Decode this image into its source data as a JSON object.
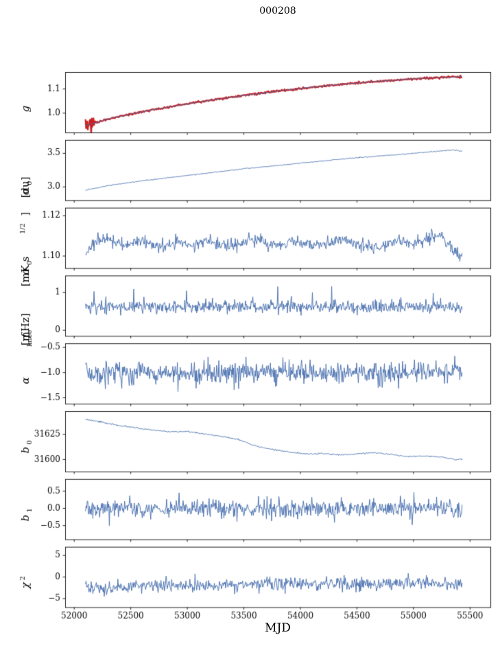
{
  "title": "000208",
  "xlabel": "MJD",
  "colors": {
    "line": "#4c72b0",
    "overlay": "#cc1f1f",
    "axis": "#000000",
    "background": "#ffffff"
  },
  "x_axis": {
    "lim": [
      51920,
      55680
    ],
    "ticks": [
      52000,
      52500,
      53000,
      53500,
      54000,
      54500,
      55000,
      55500
    ],
    "tick_labels": [
      "52000",
      "52500",
      "53000",
      "53500",
      "54000",
      "54500",
      "55000",
      "55500"
    ],
    "data_range": [
      52100,
      55430
    ]
  },
  "chart_data": [
    {
      "type": "line",
      "name": "g",
      "label_parts": [
        {
          "t": "g",
          "i": true
        }
      ],
      "ylim": [
        0.92,
        1.17
      ],
      "yticks": [
        1.0,
        1.1
      ],
      "ytick_labels": [
        "1.0",
        "1.1"
      ],
      "trend": [
        [
          52100,
          0.948
        ],
        [
          52300,
          0.976
        ],
        [
          52600,
          1.006
        ],
        [
          52900,
          1.031
        ],
        [
          53200,
          1.053
        ],
        [
          53500,
          1.073
        ],
        [
          53800,
          1.091
        ],
        [
          54100,
          1.107
        ],
        [
          54400,
          1.121
        ],
        [
          54700,
          1.132
        ],
        [
          55000,
          1.142
        ],
        [
          55200,
          1.147
        ],
        [
          55430,
          1.151
        ]
      ],
      "noise": 0.0012,
      "overlay": {
        "noise": 0.002,
        "blob_x_end": 52180,
        "blob_noise": 0.012,
        "end_x_start": 55400,
        "end_noise": 0.005,
        "lw": 2.3
      }
    },
    {
      "type": "line",
      "name": "sigma0_du",
      "label_parts": [
        {
          "t": "σ",
          "i": true
        },
        {
          "t": "0",
          "sub": true
        },
        {
          "t": " [du]"
        }
      ],
      "ylim": [
        2.8,
        3.7
      ],
      "yticks": [
        3.0,
        3.5
      ],
      "ytick_labels": [
        "3.0",
        "3.5"
      ],
      "trend": [
        [
          52100,
          2.95
        ],
        [
          52300,
          3.02
        ],
        [
          52600,
          3.09
        ],
        [
          52900,
          3.15
        ],
        [
          53200,
          3.21
        ],
        [
          53500,
          3.27
        ],
        [
          53800,
          3.32
        ],
        [
          54100,
          3.37
        ],
        [
          54400,
          3.42
        ],
        [
          54700,
          3.46
        ],
        [
          55000,
          3.5
        ],
        [
          55200,
          3.53
        ],
        [
          55350,
          3.55
        ],
        [
          55430,
          3.53
        ]
      ],
      "noise": 0.004
    },
    {
      "type": "line",
      "name": "sigma0_mK",
      "label_parts": [
        {
          "t": "σ",
          "i": true
        },
        {
          "t": "0",
          "sub": true
        },
        {
          "t": " [mK s"
        },
        {
          "t": "1/2",
          "sup": true
        },
        {
          "t": "]"
        }
      ],
      "ylim": [
        1.094,
        1.124
      ],
      "yticks": [
        1.1,
        1.12
      ],
      "ytick_labels": [
        "1.10",
        "1.12"
      ],
      "trend": [
        [
          52100,
          1.1
        ],
        [
          52180,
          1.107
        ],
        [
          52300,
          1.109
        ],
        [
          52450,
          1.105
        ],
        [
          52600,
          1.108
        ],
        [
          52750,
          1.104
        ],
        [
          52900,
          1.107
        ],
        [
          53050,
          1.105
        ],
        [
          53200,
          1.108
        ],
        [
          53350,
          1.105
        ],
        [
          53500,
          1.107
        ],
        [
          53650,
          1.108
        ],
        [
          53800,
          1.105
        ],
        [
          53950,
          1.107
        ],
        [
          54100,
          1.105
        ],
        [
          54250,
          1.107
        ],
        [
          54400,
          1.108
        ],
        [
          54550,
          1.105
        ],
        [
          54700,
          1.104
        ],
        [
          54850,
          1.108
        ],
        [
          55000,
          1.106
        ],
        [
          55150,
          1.109
        ],
        [
          55250,
          1.11
        ],
        [
          55350,
          1.102
        ],
        [
          55430,
          1.1
        ]
      ],
      "noise": 0.0015
    },
    {
      "type": "line",
      "name": "f_knee",
      "label_parts": [
        {
          "t": "f",
          "i": true
        },
        {
          "t": "knee",
          "sub": true
        },
        {
          "t": " [mHz]"
        }
      ],
      "ylim": [
        -0.15,
        1.45
      ],
      "yticks": [
        0,
        1
      ],
      "ytick_labels": [
        "0",
        "1"
      ],
      "trend": [
        [
          52100,
          0.62
        ],
        [
          55430,
          0.62
        ]
      ],
      "noise": 0.085,
      "spikes": {
        "p": 0.015,
        "min": 0.2,
        "max": 0.55,
        "sign": "up"
      }
    },
    {
      "type": "line",
      "name": "alpha",
      "label_parts": [
        {
          "t": "α",
          "i": true
        }
      ],
      "ylim": [
        -1.62,
        -0.42
      ],
      "yticks": [
        -1.5,
        -1.0,
        -0.5
      ],
      "ytick_labels": [
        "−1.5",
        "−1.0",
        "−0.5"
      ],
      "trend": [
        [
          52100,
          -1.0
        ],
        [
          55430,
          -1.0
        ]
      ],
      "noise": 0.11,
      "spikes": {
        "p": 0.012,
        "min": 0.12,
        "max": 0.3,
        "sign": "both"
      }
    },
    {
      "type": "line",
      "name": "b0",
      "label_parts": [
        {
          "t": "b",
          "i": true
        },
        {
          "t": "0",
          "sub": true
        }
      ],
      "ylim": [
        31588,
        31648
      ],
      "yticks": [
        31600,
        31625
      ],
      "ytick_labels": [
        "31600",
        "31625"
      ],
      "trend": [
        [
          52100,
          31640
        ],
        [
          52250,
          31637
        ],
        [
          52400,
          31633.5
        ],
        [
          52550,
          31631.5
        ],
        [
          52700,
          31629
        ],
        [
          52850,
          31627.5
        ],
        [
          53000,
          31627.8
        ],
        [
          53150,
          31625.5
        ],
        [
          53300,
          31623
        ],
        [
          53450,
          31620
        ],
        [
          53600,
          31613.5
        ],
        [
          53750,
          31610
        ],
        [
          53900,
          31607.5
        ],
        [
          54050,
          31605.5
        ],
        [
          54200,
          31605.8
        ],
        [
          54350,
          31604.5
        ],
        [
          54500,
          31605.5
        ],
        [
          54650,
          31607
        ],
        [
          54800,
          31605
        ],
        [
          54950,
          31603
        ],
        [
          55100,
          31603.5
        ],
        [
          55250,
          31602.5
        ],
        [
          55380,
          31599.8
        ],
        [
          55430,
          31600.5
        ]
      ],
      "noise": 0.35
    },
    {
      "type": "line",
      "name": "b1",
      "label_parts": [
        {
          "t": "b",
          "i": true
        },
        {
          "t": "1",
          "sub": true
        }
      ],
      "ylim": [
        -0.9,
        0.85
      ],
      "yticks": [
        -0.5,
        0.0,
        0.5
      ],
      "ytick_labels": [
        "−0.5",
        "0.0",
        "0.5"
      ],
      "trend": [
        [
          52100,
          0.0
        ],
        [
          55430,
          0.0
        ]
      ],
      "noise": 0.13,
      "spikes": {
        "p": 0.014,
        "min": 0.25,
        "max": 0.6,
        "sign": "both"
      }
    },
    {
      "type": "line",
      "name": "chi2",
      "label_parts": [
        {
          "t": "χ",
          "i": true
        },
        {
          "t": "2",
          "sup": true
        }
      ],
      "ylim": [
        -7,
        7
      ],
      "yticks": [
        -5,
        0,
        5
      ],
      "ytick_labels": [
        "−5",
        "0",
        "5"
      ],
      "trend": [
        [
          52100,
          -1.9
        ],
        [
          52250,
          -2.7
        ],
        [
          52400,
          -2.3
        ],
        [
          52600,
          -1.9
        ],
        [
          53000,
          -2.0
        ],
        [
          53500,
          -1.8
        ],
        [
          54000,
          -1.6
        ],
        [
          54500,
          -1.6
        ],
        [
          55000,
          -1.5
        ],
        [
          55430,
          -1.5
        ]
      ],
      "noise": 0.75,
      "spikes": {
        "p": 0.008,
        "min": 0.8,
        "max": 2.0,
        "sign": "both"
      }
    }
  ]
}
